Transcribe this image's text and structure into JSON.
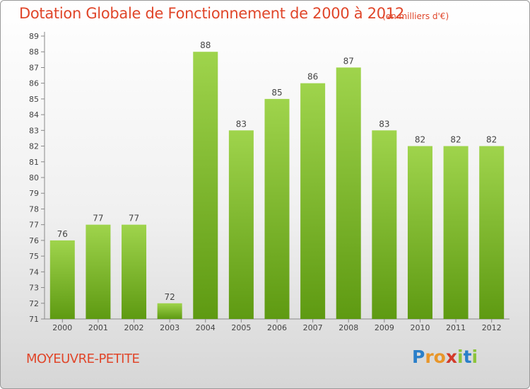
{
  "title": "Dotation Globale de Fonctionnement de 2000 à 2012",
  "subtitle": "(en milliers d'€)",
  "commune": "MOYEUVRE-PETITE",
  "logo": {
    "letters": [
      "P",
      "r",
      "o",
      "x",
      "i",
      "t",
      "i"
    ],
    "colors": [
      "#2a7fc9",
      "#e8962a",
      "#e8962a",
      "#d23a2a",
      "#8cc43a",
      "#2a7fc9",
      "#8cc43a"
    ]
  },
  "colors": {
    "bar_top": "#9fd44c",
    "bar_bottom": "#5e9a12",
    "text": "#e0462a"
  },
  "chart_data": {
    "type": "bar",
    "categories": [
      "2000",
      "2001",
      "2002",
      "2003",
      "2004",
      "2005",
      "2006",
      "2007",
      "2008",
      "2009",
      "2010",
      "2011",
      "2012"
    ],
    "values": [
      76,
      77,
      77,
      72,
      88,
      83,
      85,
      86,
      87,
      83,
      82,
      82,
      82
    ],
    "ylim": [
      71,
      89
    ],
    "yticks": [
      71,
      72,
      73,
      74,
      75,
      76,
      77,
      78,
      79,
      80,
      81,
      82,
      83,
      84,
      85,
      86,
      87,
      88,
      89
    ],
    "grid": false,
    "legend": "none"
  }
}
